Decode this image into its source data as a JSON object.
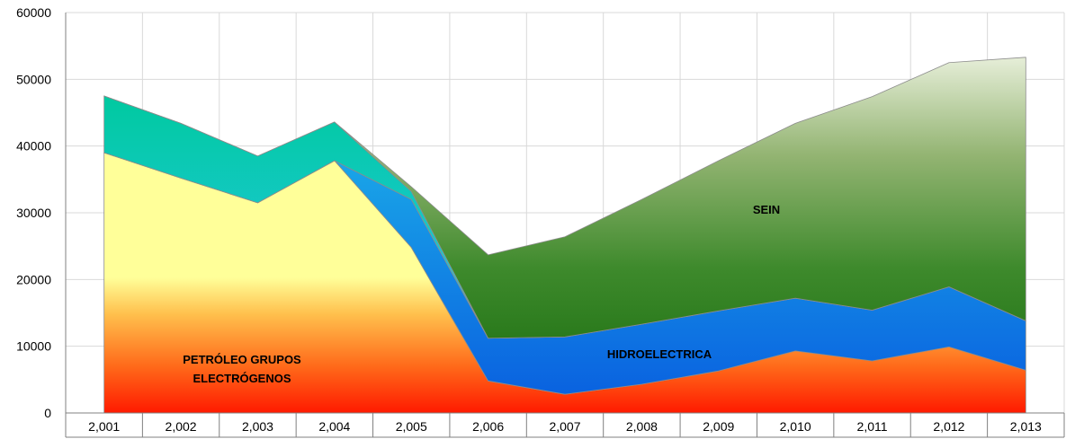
{
  "chart_data": {
    "type": "area",
    "stacked": true,
    "categories": [
      "2,001",
      "2,002",
      "2,003",
      "2,004",
      "2,005",
      "2,006",
      "2,007",
      "2,008",
      "2,009",
      "2,010",
      "2,011",
      "2,012",
      "2,013"
    ],
    "ylim": [
      0,
      60000
    ],
    "yticks": [
      0,
      10000,
      20000,
      30000,
      40000,
      50000,
      60000
    ],
    "ytick_labels": [
      "0",
      "10000",
      "20000",
      "30000",
      "40000",
      "50000",
      "60000"
    ],
    "grid": true,
    "series": [
      {
        "key": "petroleo",
        "values": [
          39000,
          35200,
          31500,
          37800,
          24800,
          4800,
          2800,
          4300,
          6300,
          9300,
          7800,
          9900,
          6400
        ]
      },
      {
        "key": "hidro",
        "values": [
          0,
          0,
          0,
          0,
          7200,
          6400,
          8600,
          9000,
          9000,
          7900,
          7600,
          9000,
          7400
        ]
      },
      {
        "key": "termica",
        "values": [
          8500,
          8200,
          7000,
          5800,
          1200,
          0,
          0,
          0,
          0,
          0,
          0,
          0,
          0
        ]
      },
      {
        "key": "sein",
        "values": [
          0,
          0,
          0,
          0,
          700,
          12500,
          15000,
          18700,
          22500,
          26200,
          32000,
          33600,
          39500
        ]
      }
    ],
    "annotations": [
      {
        "key": "petroleo-label",
        "lines": [
          "PETRÓLEO GRUPOS",
          "ELECTRÓGENOS"
        ]
      },
      {
        "key": "hidro-label",
        "lines": [
          "HIDROELECTRICA"
        ]
      },
      {
        "key": "sein-label",
        "lines": [
          "SEIN"
        ]
      }
    ]
  }
}
